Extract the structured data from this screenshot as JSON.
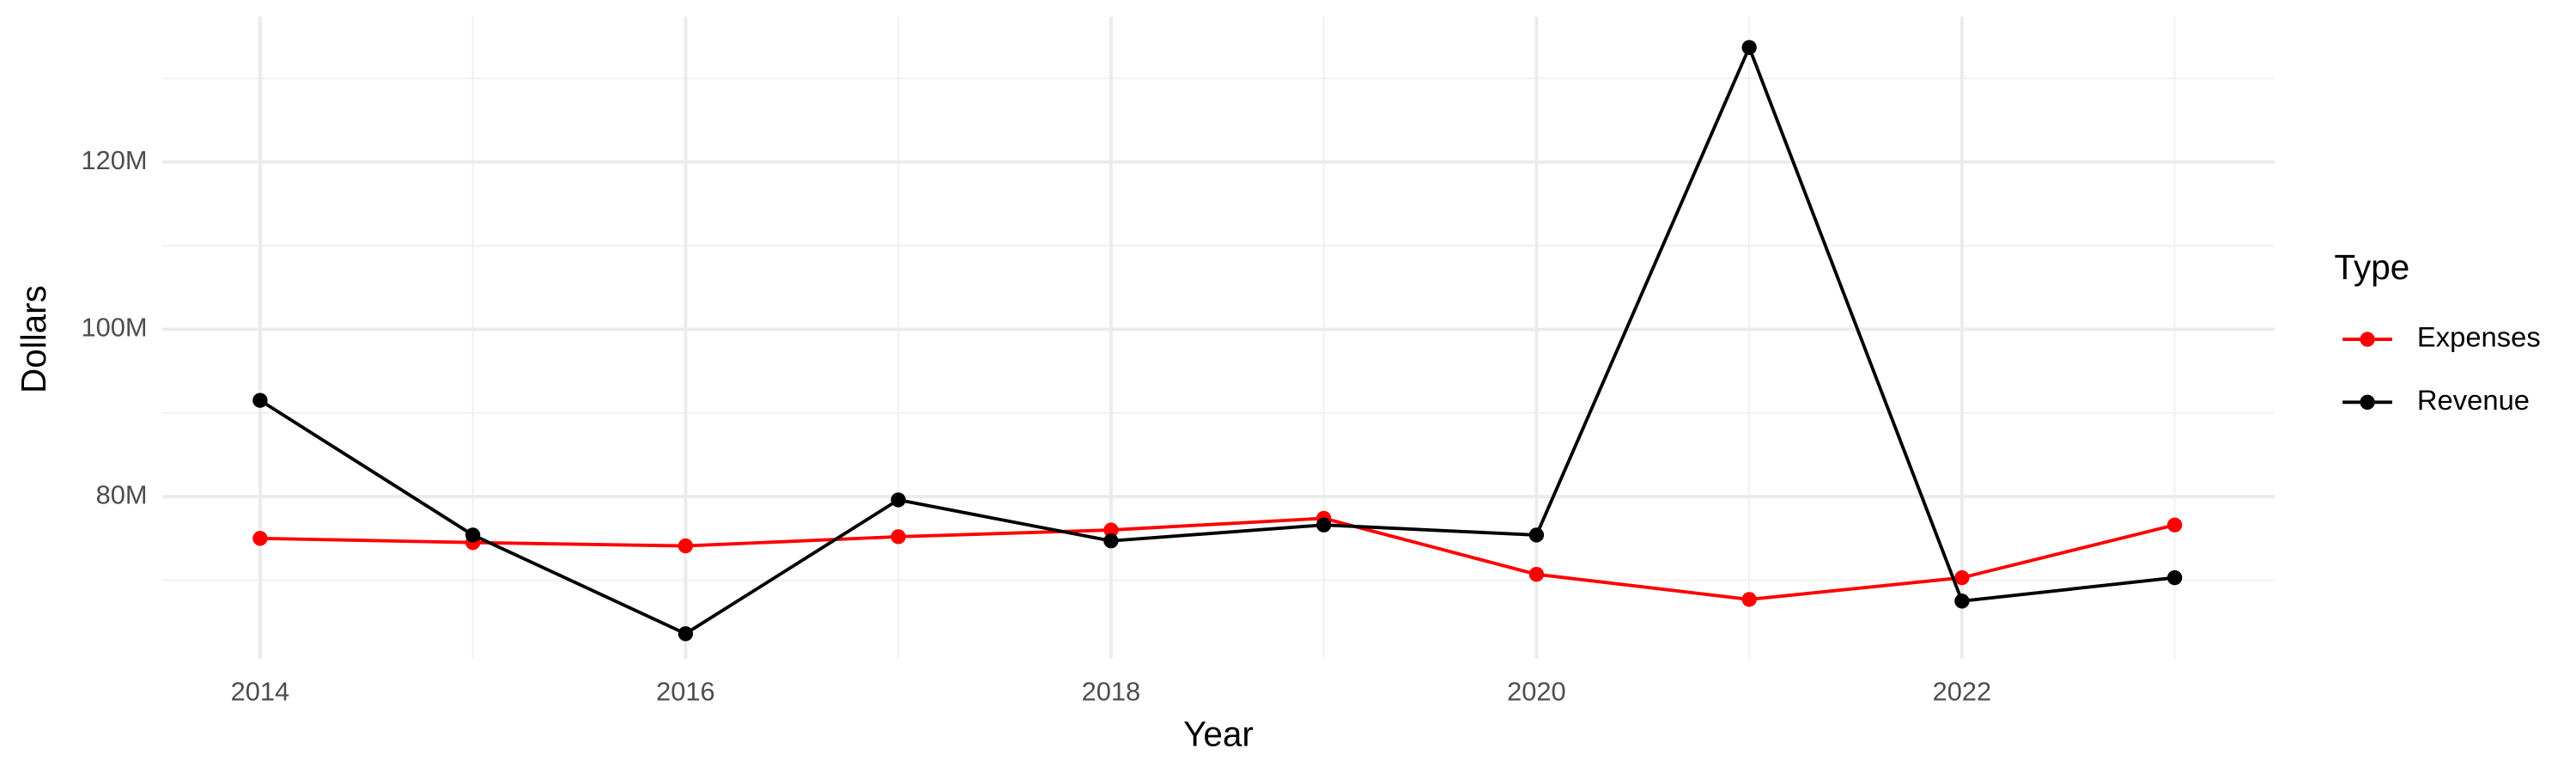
{
  "chart_data": {
    "type": "line",
    "x_label": "Year",
    "y_label": "Dollars",
    "legend_title": "Type",
    "x": [
      2014,
      2015,
      2016,
      2017,
      2018,
      2019,
      2020,
      2021,
      2022,
      2023
    ],
    "series": [
      {
        "name": "Expenses",
        "color": "#ff0000",
        "values": [
          75000000,
          74500000,
          74100000,
          75200000,
          76000000,
          77400000,
          70700000,
          67700000,
          70300000,
          76600000
        ]
      },
      {
        "name": "Revenue",
        "color": "#000000",
        "values": [
          91500000,
          75400000,
          63600000,
          79600000,
          74700000,
          76600000,
          75400000,
          133700000,
          67500000,
          70300000
        ]
      }
    ],
    "xlim": [
      2013.54,
      2023.47
    ],
    "ylim": [
      60600000,
      137400000
    ],
    "xticks": [
      2014,
      2016,
      2018,
      2020,
      2022
    ],
    "x_minor_ticks": [
      2015,
      2017,
      2019,
      2021,
      2023
    ],
    "yticks": [
      {
        "value": 80000000,
        "label": "80M"
      },
      {
        "value": 100000000,
        "label": "100M"
      },
      {
        "value": 120000000,
        "label": "120M"
      }
    ],
    "y_minor_ticks": [
      70000000,
      90000000,
      110000000,
      130000000
    ],
    "grid": true,
    "legend": "right"
  }
}
